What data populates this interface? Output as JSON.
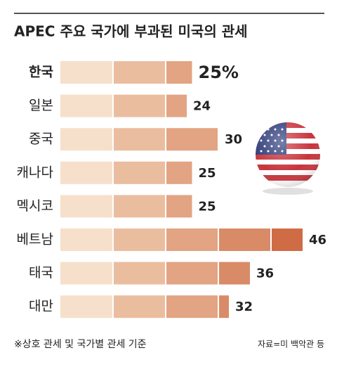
{
  "chart_data": {
    "type": "bar",
    "orientation": "horizontal",
    "title": "APEC 주요 국가에 부과된 미국의 관세",
    "categories": [
      "한국",
      "일본",
      "중국",
      "캐나다",
      "멕시코",
      "베트남",
      "태국",
      "대만"
    ],
    "values": [
      25,
      24,
      30,
      25,
      25,
      46,
      36,
      32
    ],
    "value_labels": [
      "25%",
      "24",
      "30",
      "25",
      "25",
      "46",
      "36",
      "32"
    ],
    "xlim": [
      0,
      50
    ],
    "segment_colors": [
      "#f6e0cc",
      "#ebbd9f",
      "#e2a482",
      "#d98b67",
      "#cf6c45"
    ],
    "highlight_index": 0,
    "note": "※상호 관세 및 국가별 관세 기준",
    "source": "자료=미 백악관 등"
  }
}
